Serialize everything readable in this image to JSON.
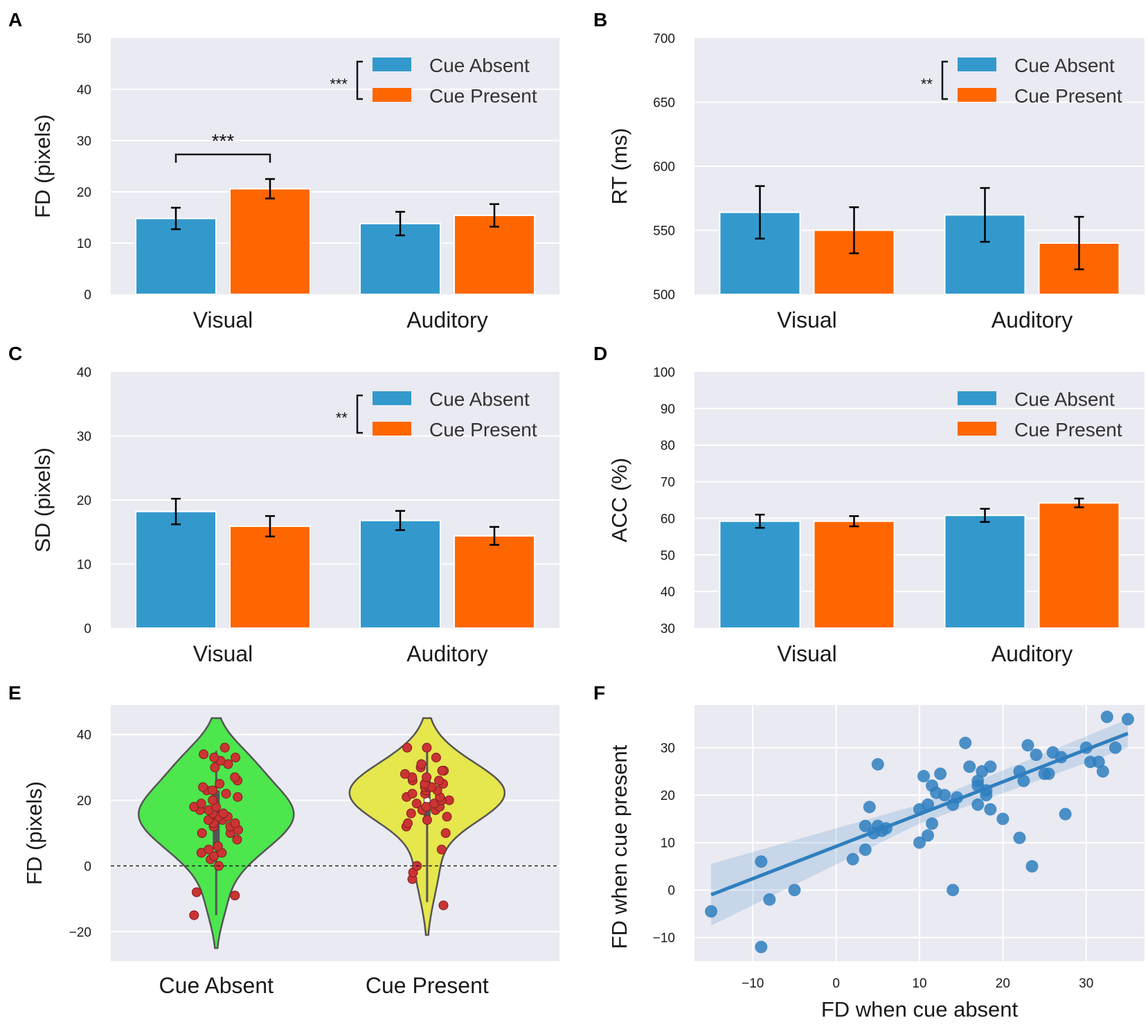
{
  "colors": {
    "cue_absent": "#3399cc",
    "cue_present": "#ff6600",
    "violin_absent": "#4de64d",
    "violin_present": "#e6e64d",
    "points": "#cc3333",
    "scatter": "#2f7fbf"
  },
  "legend_labels": [
    "Cue Absent",
    "Cue Present"
  ],
  "chart_data": [
    {
      "panel": "A",
      "type": "bar",
      "ylabel": "FD (pixels)",
      "ylim": [
        0,
        50
      ],
      "yticks": [
        "0",
        "10",
        "20",
        "30",
        "40",
        "50"
      ],
      "ytick_values": [
        0,
        10,
        20,
        30,
        40,
        50
      ],
      "categories": [
        "Visual",
        "Auditory"
      ],
      "series": [
        {
          "name": "Cue Absent",
          "values": [
            14.8,
            13.8
          ],
          "errors": [
            2.1,
            2.3
          ]
        },
        {
          "name": "Cue Present",
          "values": [
            20.6,
            15.4
          ],
          "errors": [
            1.9,
            2.2
          ]
        }
      ],
      "legend_sig": "***",
      "pair_sig": "***"
    },
    {
      "panel": "B",
      "type": "bar",
      "ylabel": "RT (ms)",
      "ylim": [
        500,
        700
      ],
      "yticks": [
        "500",
        "550",
        "600",
        "650",
        "700"
      ],
      "ytick_values": [
        500,
        550,
        600,
        650,
        700
      ],
      "categories": [
        "Visual",
        "Auditory"
      ],
      "series": [
        {
          "name": "Cue Absent",
          "values": [
            564,
            562
          ],
          "errors": [
            20.5,
            21
          ]
        },
        {
          "name": "Cue Present",
          "values": [
            550,
            540
          ],
          "errors": [
            18,
            20.5
          ]
        }
      ],
      "legend_sig": "**"
    },
    {
      "panel": "C",
      "type": "bar",
      "ylabel": "SD (pixels)",
      "ylim": [
        0,
        40
      ],
      "yticks": [
        "0",
        "10",
        "20",
        "30",
        "40"
      ],
      "ytick_values": [
        0,
        10,
        20,
        30,
        40
      ],
      "categories": [
        "Visual",
        "Auditory"
      ],
      "series": [
        {
          "name": "Cue Absent",
          "values": [
            18.2,
            16.8
          ],
          "errors": [
            2.0,
            1.5
          ]
        },
        {
          "name": "Cue Present",
          "values": [
            15.9,
            14.4
          ],
          "errors": [
            1.6,
            1.4
          ]
        }
      ],
      "legend_sig": "**"
    },
    {
      "panel": "D",
      "type": "bar",
      "ylabel": "ACC (%)",
      "ylim": [
        30,
        100
      ],
      "yticks": [
        "30",
        "40",
        "50",
        "60",
        "70",
        "80",
        "90",
        "100"
      ],
      "ytick_values": [
        30,
        40,
        50,
        60,
        70,
        80,
        90,
        100
      ],
      "categories": [
        "Visual",
        "Auditory"
      ],
      "series": [
        {
          "name": "Cue Absent",
          "values": [
            59.2,
            60.8
          ],
          "errors": [
            1.8,
            1.8
          ]
        },
        {
          "name": "Cue Present",
          "values": [
            59.2,
            64.2
          ],
          "errors": [
            1.4,
            1.2
          ]
        }
      ]
    },
    {
      "panel": "E",
      "type": "violin",
      "ylabel": "FD (pixels)",
      "ylim": [
        -29,
        49
      ],
      "yticks": [
        "-20",
        "0",
        "20",
        "40"
      ],
      "ytick_values": [
        -20,
        0,
        20,
        40
      ],
      "categories": [
        "Cue Absent",
        "Cue Present"
      ],
      "distributions": [
        {
          "name": "Cue Absent",
          "range": [
            -25,
            45
          ],
          "median": 14,
          "q1": 5,
          "q3": 23,
          "points": [
            -15,
            -9,
            -8,
            0,
            2,
            3,
            4,
            4,
            5,
            6,
            8,
            10,
            10,
            11,
            12,
            12,
            13,
            13,
            14,
            14,
            15,
            15,
            16,
            16,
            17,
            17,
            18,
            18,
            19,
            20,
            21,
            22,
            23,
            23,
            24,
            25,
            26,
            27,
            30,
            31,
            32,
            33,
            33,
            34,
            36
          ]
        },
        {
          "name": "Cue Present",
          "range": [
            -21,
            45
          ],
          "median": 20,
          "q1": 13,
          "q3": 26,
          "points": [
            -12,
            -4,
            -2,
            0,
            5,
            10,
            12,
            13,
            14,
            15,
            16,
            17,
            17,
            18,
            18,
            19,
            19,
            20,
            20,
            20,
            21,
            21,
            22,
            22,
            23,
            23,
            24,
            24,
            24,
            25,
            25,
            26,
            26,
            27,
            27,
            28,
            29,
            29,
            30,
            31,
            33,
            36,
            36
          ]
        }
      ]
    },
    {
      "panel": "F",
      "type": "scatter",
      "xlabel": "FD when cue absent",
      "ylabel": "FD when cue present",
      "xlim": [
        -17,
        37
      ],
      "ylim": [
        -15,
        39
      ],
      "xticks": [
        "-10",
        "0",
        "10",
        "20",
        "30"
      ],
      "xtick_values": [
        -10,
        0,
        10,
        20,
        30
      ],
      "yticks": [
        "-10",
        "0",
        "10",
        "20",
        "30"
      ],
      "ytick_values": [
        -10,
        0,
        10,
        20,
        30
      ],
      "points": [
        [
          -15,
          -4.5
        ],
        [
          -9,
          6
        ],
        [
          -8,
          -2
        ],
        [
          -9,
          -12
        ],
        [
          -5,
          0
        ],
        [
          2,
          6.5
        ],
        [
          3.5,
          8.5
        ],
        [
          3.5,
          13.5
        ],
        [
          4,
          17.5
        ],
        [
          4.5,
          12
        ],
        [
          5,
          13.5
        ],
        [
          5.5,
          12.5
        ],
        [
          5,
          26.5
        ],
        [
          6,
          13
        ],
        [
          10,
          17
        ],
        [
          10,
          10
        ],
        [
          10.5,
          24
        ],
        [
          11,
          11.5
        ],
        [
          11,
          18
        ],
        [
          11.5,
          22
        ],
        [
          11.5,
          14
        ],
        [
          12,
          20.5
        ],
        [
          12.5,
          24.5
        ],
        [
          13,
          20
        ],
        [
          14,
          18
        ],
        [
          14.5,
          19.5
        ],
        [
          14,
          0
        ],
        [
          15.5,
          31
        ],
        [
          16,
          26
        ],
        [
          17,
          18
        ],
        [
          17,
          23
        ],
        [
          17,
          22
        ],
        [
          17.5,
          25
        ],
        [
          18,
          21
        ],
        [
          18,
          20
        ],
        [
          18.5,
          26
        ],
        [
          18.5,
          17
        ],
        [
          20,
          15
        ],
        [
          22,
          25
        ],
        [
          22,
          11
        ],
        [
          22.5,
          23
        ],
        [
          23,
          30.5
        ],
        [
          23.5,
          5
        ],
        [
          24,
          28.5
        ],
        [
          25,
          24.5
        ],
        [
          25.5,
          24.5
        ],
        [
          26,
          29
        ],
        [
          27,
          28
        ],
        [
          27.5,
          16
        ],
        [
          30,
          30
        ],
        [
          30.5,
          27
        ],
        [
          31.5,
          27
        ],
        [
          32,
          25
        ],
        [
          32.5,
          36.5
        ],
        [
          33.5,
          30
        ],
        [
          35,
          36
        ]
      ],
      "fit_line": [
        [
          -15,
          -1
        ],
        [
          35,
          33
        ]
      ]
    }
  ]
}
